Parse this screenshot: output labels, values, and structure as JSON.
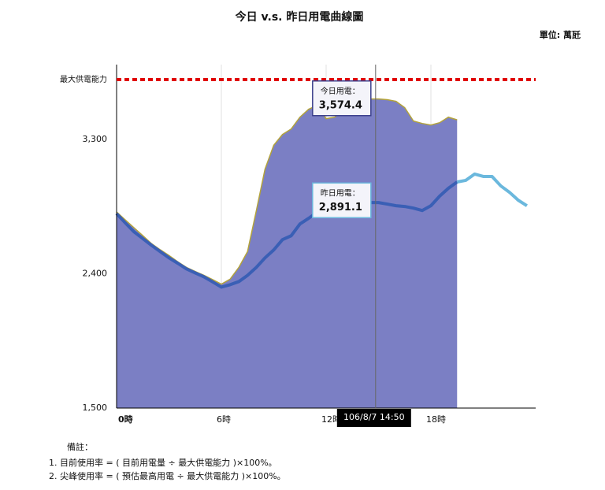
{
  "chart_data": {
    "type": "area-line",
    "title": "今日 v.s. 昨日用電曲線圖",
    "unit": "單位: 萬瓩",
    "x": [
      0,
      0.5,
      1,
      1.5,
      2,
      2.5,
      3,
      3.5,
      4,
      4.5,
      5,
      5.5,
      6,
      6.5,
      7,
      7.5,
      8,
      8.5,
      9,
      9.5,
      10,
      10.5,
      11,
      11.5,
      12,
      12.5,
      13,
      13.5,
      14,
      14.5,
      15,
      15.5,
      16,
      16.5,
      17,
      17.5,
      18,
      18.5,
      19,
      19.5,
      20,
      20.5,
      21,
      21.5,
      22,
      22.5,
      23,
      23.5
    ],
    "series": [
      {
        "name": "今日用電：",
        "color": "#7b7fc4",
        "outline": "#b3a33c",
        "values": [
          2813,
          2760,
          2707,
          2655,
          2601,
          2560,
          2522,
          2480,
          2442,
          2415,
          2389,
          2360,
          2330,
          2363,
          2442,
          2548,
          2820,
          3100,
          3260,
          3332,
          3369,
          3448,
          3501,
          3528,
          3438,
          3448,
          3501,
          3528,
          3554,
          3570,
          3570,
          3565,
          3554,
          3512,
          3422,
          3406,
          3395,
          3411,
          3448,
          3430,
          null,
          null,
          null,
          null,
          null,
          null,
          null,
          null
        ]
      },
      {
        "name": "昨日用電：",
        "color": "#3a5fb5",
        "future_color": "#6bb8dd",
        "values": [
          2802,
          2740,
          2680,
          2635,
          2590,
          2548,
          2506,
          2470,
          2432,
          2405,
          2379,
          2345,
          2310,
          2326,
          2347,
          2389,
          2442,
          2506,
          2559,
          2628,
          2654,
          2733,
          2771,
          2813,
          2855,
          2876,
          2892,
          2908,
          2892,
          2876,
          2876,
          2866,
          2855,
          2850,
          2839,
          2823,
          2855,
          2919,
          2972,
          3014,
          3025,
          3067,
          3051,
          3051,
          2988,
          2945,
          2892,
          2855
        ]
      }
    ],
    "tooltips": [
      {
        "name": "今日用電：",
        "value": 3574.4,
        "value_label": "3,574.4"
      },
      {
        "name": "昨日用電：",
        "value": 2891.1,
        "value_label": "2,891.1"
      }
    ],
    "cursor": {
      "x": 14.8333,
      "label": "106/8/7 14:50"
    },
    "capacity": {
      "label": "最大供電能力",
      "value": 3700,
      "color": "#e00000"
    },
    "xlim": [
      0,
      24
    ],
    "xticks": [
      {
        "value": 0,
        "label": "0時"
      },
      {
        "value": 6,
        "label": "6時"
      },
      {
        "value": 12,
        "label": "12時"
      },
      {
        "value": 18,
        "label": "18時"
      }
    ],
    "ylim": [
      1500,
      3800
    ],
    "yticks": [
      {
        "value": 1500,
        "label": "1,500"
      },
      {
        "value": 2400,
        "label": "2,400"
      },
      {
        "value": 3300,
        "label": "3,300"
      }
    ],
    "grid": true
  },
  "notes": [
    "備註：",
    "1. 目前使用率 = ( 目前用電量 ÷ 最大供電能力 )×100%。",
    "2. 尖峰使用率 = ( 預估最高用電 ÷ 最大供電能力 )×100%。"
  ]
}
